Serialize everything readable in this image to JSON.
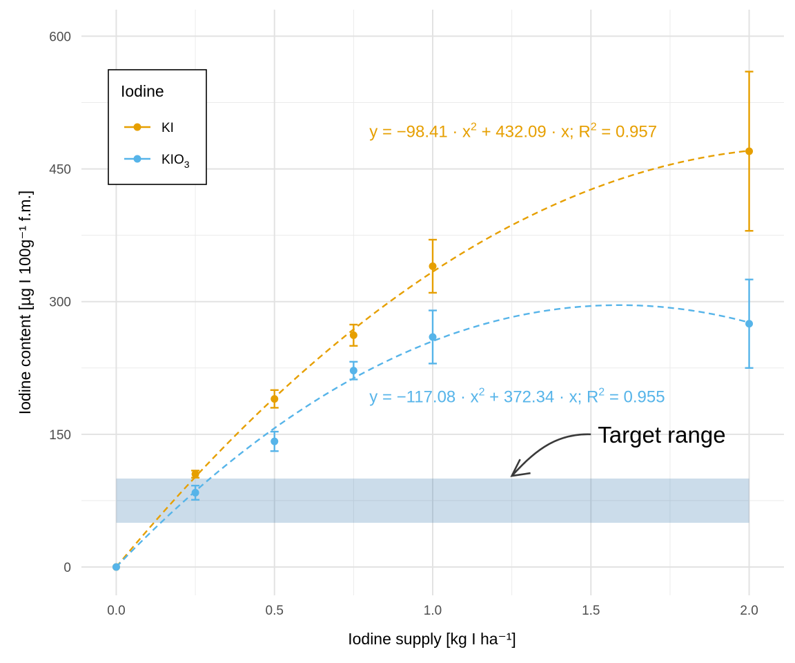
{
  "chart_data": {
    "type": "line",
    "xlabel": "Iodine supply [kg I ha⁻¹]",
    "ylabel": "Iodine content [µg I 100g⁻¹ f.m.]",
    "xlim": [
      -0.11,
      2.11
    ],
    "ylim": [
      -32,
      630
    ],
    "x_ticks": [
      0.0,
      0.5,
      1.0,
      1.5,
      2.0
    ],
    "x_tick_labels": [
      "0.0",
      "0.5",
      "1.0",
      "1.5",
      "2.0"
    ],
    "x_minor_ticks": [
      0.25,
      0.75,
      1.25,
      1.75
    ],
    "y_ticks": [
      0,
      150,
      300,
      450,
      600
    ],
    "y_tick_labels": [
      "0",
      "150",
      "300",
      "450",
      "600"
    ],
    "y_minor_ticks": [
      75,
      225,
      375,
      525
    ],
    "grid": true,
    "legend": {
      "title": "Iodine",
      "position": "top-left",
      "entries": [
        {
          "label": "KI",
          "color": "#E69F00"
        },
        {
          "label": "KIO",
          "subscript": "3",
          "color": "#56B4E9"
        }
      ]
    },
    "series": [
      {
        "name": "KI",
        "color": "#E69F00",
        "x": [
          0,
          0.25,
          0.5,
          0.75,
          1.0,
          2.0
        ],
        "y": [
          0,
          105,
          190,
          262,
          340,
          470
        ],
        "err_low": [
          0,
          101,
          180,
          250,
          310,
          380
        ],
        "err_high": [
          0,
          109,
          200,
          274,
          370,
          560
        ],
        "fit": {
          "a": -98.41,
          "b": 432.09,
          "r2": 0.957
        },
        "equation": {
          "lhs": "y = ",
          "eq": "−98.41 · x",
          "exp": "2",
          "rest": " + 432.09 · x;  R",
          "exp2": "2",
          "end": " = 0.957"
        }
      },
      {
        "name": "KIO3",
        "color": "#56B4E9",
        "x": [
          0,
          0.25,
          0.5,
          0.75,
          1.0,
          2.0
        ],
        "y": [
          0,
          84,
          142,
          222,
          260,
          275
        ],
        "err_low": [
          0,
          76,
          131,
          212,
          230,
          225
        ],
        "err_high": [
          0,
          92,
          153,
          232,
          290,
          325
        ],
        "fit": {
          "a": -117.08,
          "b": 372.34,
          "r2": 0.955
        },
        "equation": {
          "lhs": "y = ",
          "eq": "−117.08 · x",
          "exp": "2",
          "rest": " + 372.34 · x;  R",
          "exp2": "2",
          "end": " = 0.955"
        }
      }
    ],
    "target_band": {
      "x": [
        0,
        2.0
      ],
      "y": [
        50,
        100
      ],
      "color": "#4682B4"
    },
    "annotation": {
      "text": "Target range",
      "point_to": [
        1.25,
        103
      ],
      "from": [
        1.5,
        150
      ]
    }
  }
}
